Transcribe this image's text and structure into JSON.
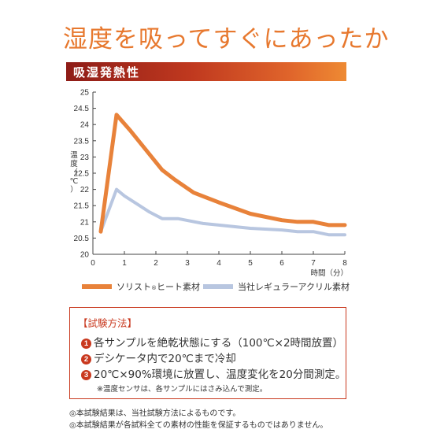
{
  "headline": "湿度を吸ってすぐにあったか",
  "section_title": "吸湿発熱性",
  "chart_data": {
    "type": "line",
    "title": "吸湿発熱性",
    "ylabel_chars": [
      "温",
      "度",
      "（",
      "℃",
      "）"
    ],
    "xlabel": "時間（分）",
    "xlim": [
      0,
      8
    ],
    "ylim": [
      20,
      25
    ],
    "x_ticks": [
      "0",
      "1",
      "2",
      "3",
      "4",
      "5",
      "6",
      "7",
      "8"
    ],
    "y_ticks": [
      "20",
      "20.5",
      "21",
      "21.5",
      "22",
      "22.5",
      "23",
      "23.5",
      "24",
      "24.5",
      "25"
    ],
    "grid": false,
    "legend_position": "bottom",
    "series": [
      {
        "name": "ソリスト®ヒート素材",
        "legend_parts": [
          "ソリスト",
          "®",
          "ヒート素材"
        ],
        "color": "#e8823a",
        "x": [
          0.25,
          0.75,
          1.2,
          1.7,
          2.2,
          2.6,
          3.2,
          4.0,
          5.0,
          6.0,
          6.5,
          7.0,
          7.5,
          8.0
        ],
        "y": [
          20.7,
          24.3,
          23.8,
          23.2,
          22.6,
          22.3,
          21.9,
          21.6,
          21.25,
          21.05,
          21.0,
          21.0,
          20.9,
          20.9
        ]
      },
      {
        "name": "当社レギュラーアクリル素材",
        "color": "#b8c6e0",
        "x": [
          0.25,
          0.75,
          1.0,
          1.4,
          1.8,
          2.2,
          2.7,
          3.5,
          4.0,
          5.0,
          6.0,
          6.5,
          7.0,
          7.5,
          8.0
        ],
        "y": [
          20.7,
          22.0,
          21.8,
          21.55,
          21.3,
          21.1,
          21.1,
          20.95,
          20.9,
          20.8,
          20.75,
          20.7,
          20.7,
          20.6,
          20.6
        ]
      }
    ]
  },
  "method": {
    "title": "【試験方法】",
    "items": [
      {
        "num": "1",
        "text": "各サンプルを絶乾状態にする（100℃×2時間放置）"
      },
      {
        "num": "2",
        "text": "デシケータ内で20℃まで冷却"
      },
      {
        "num": "3",
        "text": "20℃×90%環境に放置し、温度変化を20分間測定。"
      }
    ],
    "note": "※温度センサは、各サンプルにはさみ込んで測定。"
  },
  "footnotes": [
    "◎本試験結果は、当社試験方法によるものです。",
    "◎本試験結果が各試料全ての素材の性能を保証するものではありません。"
  ]
}
